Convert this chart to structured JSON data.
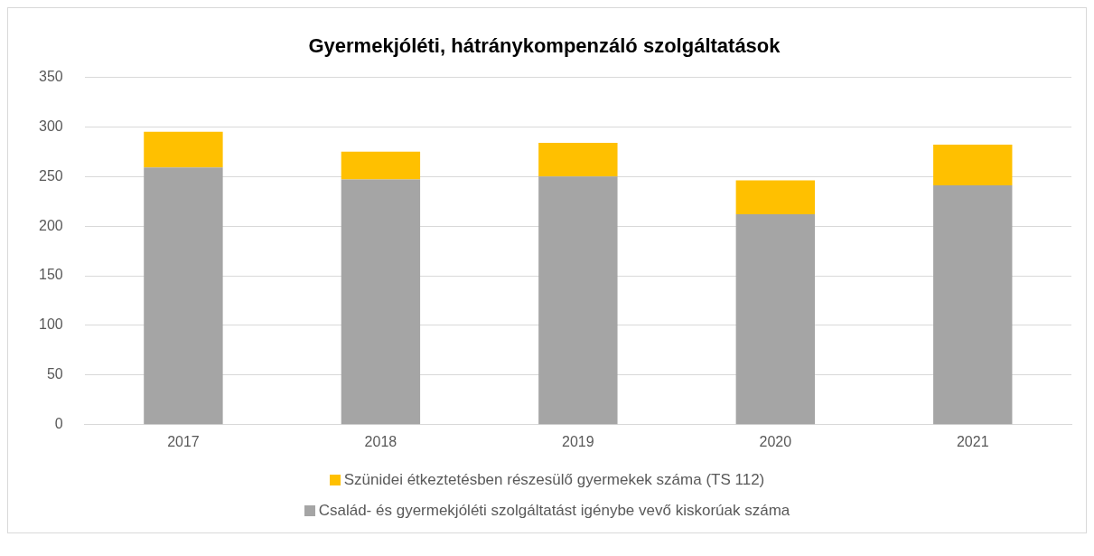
{
  "chart_data": {
    "type": "bar",
    "title": "Gyermekjóléti, hátránykompenzáló szolgáltatások",
    "categories": [
      "2017",
      "2018",
      "2019",
      "2020",
      "2021"
    ],
    "series": [
      {
        "name": "Család- és gyermekjóléti szolgáltatást igénybe vevő kiskorúak száma",
        "color": "#a5a5a5",
        "values": [
          259,
          247,
          250,
          212,
          241
        ]
      },
      {
        "name": "Szünidei étkeztetésben részesülő gyermekek száma (TS 112)",
        "color": "#ffc000",
        "values": [
          36,
          28,
          34,
          34,
          41
        ]
      }
    ],
    "stacked": true,
    "ylim": [
      0,
      350
    ],
    "yticks": [
      0,
      50,
      100,
      150,
      200,
      250,
      300,
      350
    ],
    "grid": "y",
    "legend": "bottom"
  }
}
